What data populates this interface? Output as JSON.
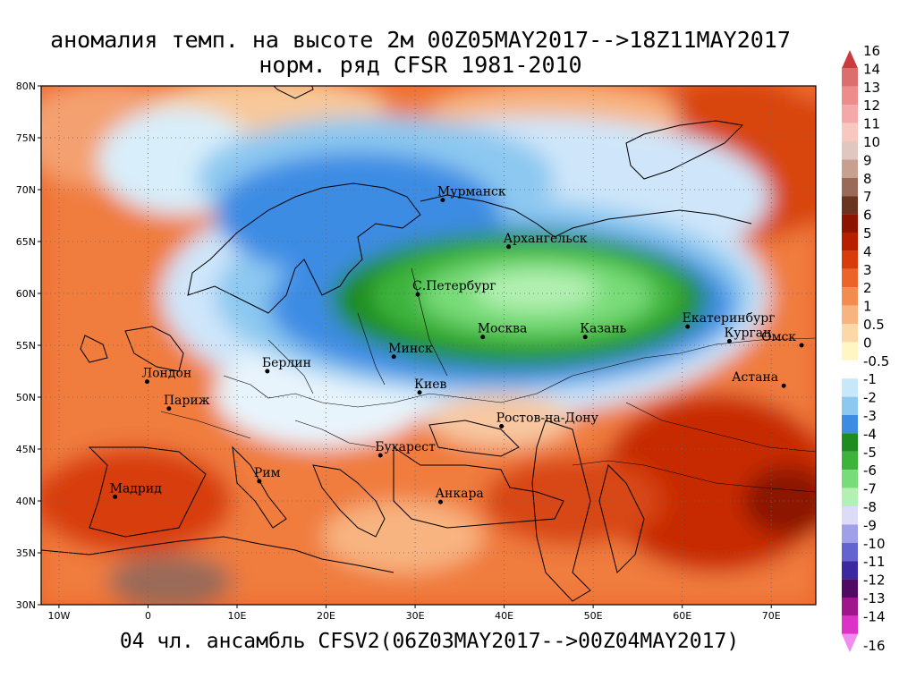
{
  "title_line1": "аномалия темп. на высоте 2м 00Z05MAY2017-->18Z11MAY2017",
  "title_line2": "норм. ряд CFSR 1981-2010",
  "footer": "04 чл. ансамбль CFSV2(06Z03MAY2017-->00Z04MAY2017)",
  "lat_labels": [
    "80N",
    "75N",
    "70N",
    "65N",
    "60N",
    "55N",
    "50N",
    "45N",
    "40N",
    "35N",
    "30N"
  ],
  "lat_values": [
    80,
    75,
    70,
    65,
    60,
    55,
    50,
    45,
    40,
    35,
    30
  ],
  "lon_labels": [
    "10W",
    "0",
    "10E",
    "20E",
    "30E",
    "40E",
    "50E",
    "60E",
    "70E"
  ],
  "lon_values": [
    -10,
    0,
    10,
    20,
    30,
    40,
    50,
    60,
    70
  ],
  "map_extent": {
    "lon_min": -12,
    "lon_max": 75,
    "lat_min": 30,
    "lat_max": 80
  },
  "colorbar": [
    {
      "label": "16",
      "color": "#c83c3c"
    },
    {
      "label": "14",
      "color": "#dc6e6e"
    },
    {
      "label": "13",
      "color": "#ee8c8c"
    },
    {
      "label": "12",
      "color": "#f4a8a8"
    },
    {
      "label": "11",
      "color": "#f8c8c0"
    },
    {
      "label": "10",
      "color": "#e0c8c0"
    },
    {
      "label": "9",
      "color": "#c8a090"
    },
    {
      "label": "8",
      "color": "#9a6a58"
    },
    {
      "label": "7",
      "color": "#6a3420"
    },
    {
      "label": "6",
      "color": "#8c1400"
    },
    {
      "label": "5",
      "color": "#b81e00"
    },
    {
      "label": "4",
      "color": "#d83c0a"
    },
    {
      "label": "3",
      "color": "#ec6428"
    },
    {
      "label": "2",
      "color": "#f48c50"
    },
    {
      "label": "1",
      "color": "#f8b480"
    },
    {
      "label": "0.5",
      "color": "#fcd8a8"
    },
    {
      "label": "0",
      "color": "#fff6c4"
    },
    {
      "label": "-0.5",
      "color": "#ffffff"
    },
    {
      "label": "-1",
      "color": "#c8e8fa"
    },
    {
      "label": "-2",
      "color": "#8cc8f0"
    },
    {
      "label": "-3",
      "color": "#3c8ce4"
    },
    {
      "label": "-4",
      "color": "#1e8c1e"
    },
    {
      "label": "-5",
      "color": "#3cb43c"
    },
    {
      "label": "-6",
      "color": "#78dc78"
    },
    {
      "label": "-7",
      "color": "#b4f0b4"
    },
    {
      "label": "-8",
      "color": "#dcdcf8"
    },
    {
      "label": "-9",
      "color": "#a0a0e8"
    },
    {
      "label": "-10",
      "color": "#6464d0"
    },
    {
      "label": "-11",
      "color": "#3c28a0"
    },
    {
      "label": "-12",
      "color": "#500a64"
    },
    {
      "label": "-13",
      "color": "#a0148c"
    },
    {
      "label": "-14",
      "color": "#dc32c8"
    },
    {
      "label": "-16",
      "color": "#f08cf0"
    }
  ],
  "cities": [
    {
      "name": "Мурманск",
      "lon": 33.1,
      "lat": 69.0
    },
    {
      "name": "Архангельск",
      "lon": 40.5,
      "lat": 64.5
    },
    {
      "name": "С.Петербург",
      "lon": 30.3,
      "lat": 59.9
    },
    {
      "name": "Москва",
      "lon": 37.6,
      "lat": 55.8
    },
    {
      "name": "Казань",
      "lon": 49.1,
      "lat": 55.8
    },
    {
      "name": "Екатеринбург",
      "lon": 60.6,
      "lat": 56.8
    },
    {
      "name": "Курган",
      "lon": 65.3,
      "lat": 55.4
    },
    {
      "name": "Омск",
      "lon": 73.4,
      "lat": 55.0
    },
    {
      "name": "Астана",
      "lon": 71.4,
      "lat": 51.1
    },
    {
      "name": "Минск",
      "lon": 27.6,
      "lat": 53.9
    },
    {
      "name": "Берлин",
      "lon": 13.4,
      "lat": 52.5
    },
    {
      "name": "Лондон",
      "lon": -0.1,
      "lat": 51.5
    },
    {
      "name": "Париж",
      "lon": 2.35,
      "lat": 48.9
    },
    {
      "name": "Киев",
      "lon": 30.5,
      "lat": 50.45
    },
    {
      "name": "Ростов-на-Дону",
      "lon": 39.7,
      "lat": 47.2
    },
    {
      "name": "Бухарест",
      "lon": 26.1,
      "lat": 44.4
    },
    {
      "name": "Рим",
      "lon": 12.5,
      "lat": 41.9
    },
    {
      "name": "Мадрид",
      "lon": -3.7,
      "lat": 40.4
    },
    {
      "name": "Анкара",
      "lon": 32.85,
      "lat": 39.9
    }
  ]
}
